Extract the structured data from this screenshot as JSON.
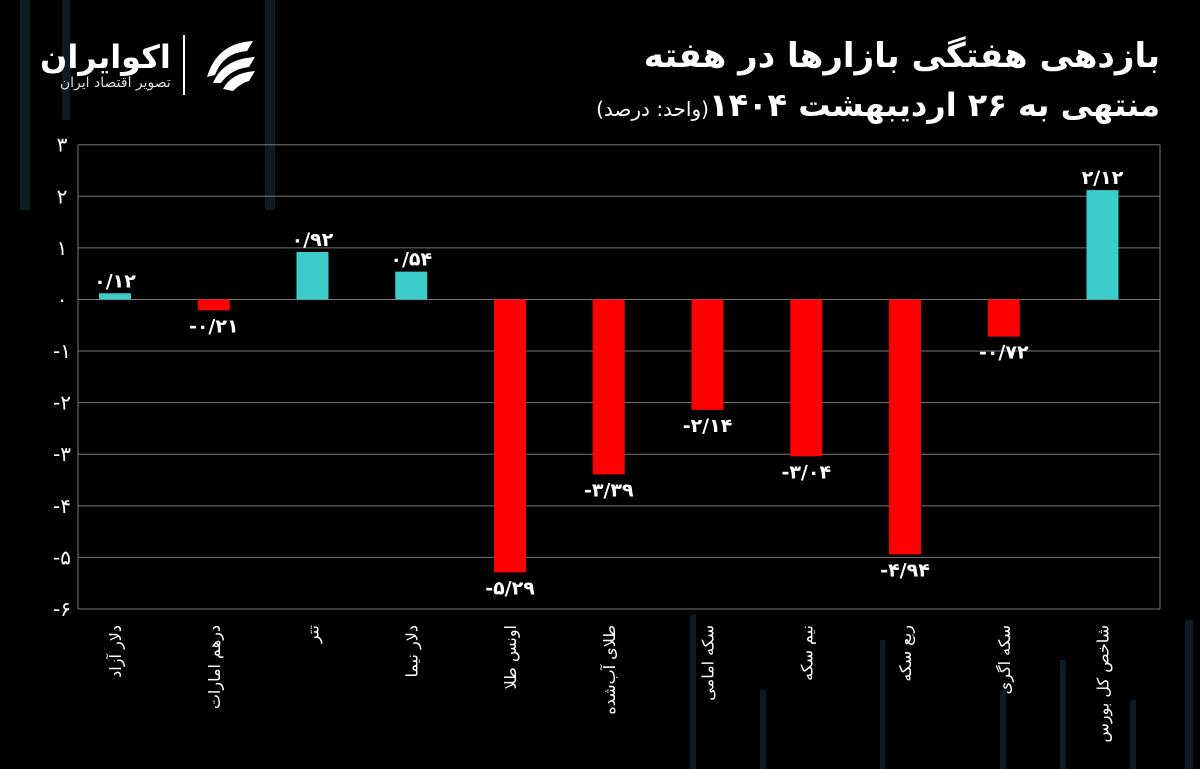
{
  "logo": {
    "name": "اکوایران",
    "subtitle": "تصویر اقتصاد ایران"
  },
  "chart_data": {
    "type": "bar",
    "title": "بازدهی هفتگی بازارها در هفته",
    "subtitle": "منتهی به ۲۶ اردیبهشت ۱۴۰۴",
    "unit": "(واحد: درصد)",
    "categories": [
      "دلار آزاد",
      "درهم امارات",
      "تتر",
      "دلار نیما",
      "اونس طلا",
      "طلای آب‌شده",
      "سکه امامی",
      "نیم سکه",
      "ربع سکه",
      "سکه اگری",
      "شاخص کل بورس"
    ],
    "values": [
      0.12,
      -0.21,
      0.92,
      0.54,
      -5.29,
      -3.39,
      -2.14,
      -3.04,
      -4.94,
      -0.72,
      2.12
    ],
    "data_labels": [
      "۰/۱۲",
      "-۰/۲۱",
      "۰/۹۲",
      "۰/۵۴",
      "-۵/۲۹",
      "-۳/۳۹",
      "-۲/۱۴",
      "-۳/۰۴",
      "-۴/۹۴",
      "-۰/۷۲",
      "۲/۱۲"
    ],
    "ylim": [
      -6,
      3
    ],
    "y_ticks": [
      3,
      2,
      1,
      0,
      -1,
      -2,
      -3,
      -4,
      -5,
      -6
    ],
    "y_tick_labels": [
      "۳",
      "۲",
      "۱",
      "۰",
      "-۱",
      "-۲",
      "-۳",
      "-۴",
      "-۵",
      "-۶"
    ],
    "grid": true,
    "colors": {
      "positive": "#3ccccc",
      "negative": "#ff0000",
      "grid": "#777777"
    }
  }
}
